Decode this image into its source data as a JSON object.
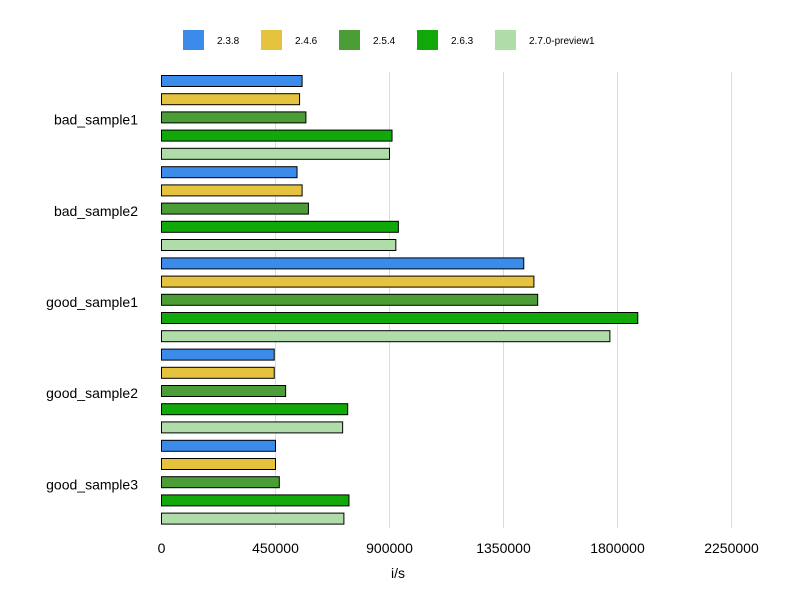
{
  "chart_data": {
    "type": "bar",
    "orientation": "horizontal",
    "title": "",
    "xlabel": "i/s",
    "ylabel": "",
    "xlim": [
      0,
      2500000
    ],
    "xticks": [
      0,
      450000,
      900000,
      1350000,
      1800000,
      2250000
    ],
    "xtick_labels": [
      "0",
      "450000",
      "900000",
      "1350000",
      "1800000",
      "2250000"
    ],
    "grid": true,
    "legend_position": "top",
    "categories": [
      "bad_sample1",
      "bad_sample2",
      "good_sample1",
      "good_sample2",
      "good_sample3"
    ],
    "series": [
      {
        "name": "2.3.8",
        "color": "#3b8beb",
        "values": [
          555000,
          535000,
          1430000,
          445000,
          450000
        ]
      },
      {
        "name": "2.4.6",
        "color": "#e5c33f",
        "values": [
          545000,
          555000,
          1470000,
          445000,
          450000
        ]
      },
      {
        "name": "2.5.4",
        "color": "#4a9e35",
        "values": [
          570000,
          580000,
          1485000,
          490000,
          465000
        ]
      },
      {
        "name": "2.6.3",
        "color": "#11a80a",
        "values": [
          910000,
          935000,
          1880000,
          735000,
          740000
        ]
      },
      {
        "name": "2.7.0-preview1",
        "color": "#b0dcaa",
        "values": [
          900000,
          925000,
          1770000,
          715000,
          720000
        ]
      }
    ]
  }
}
